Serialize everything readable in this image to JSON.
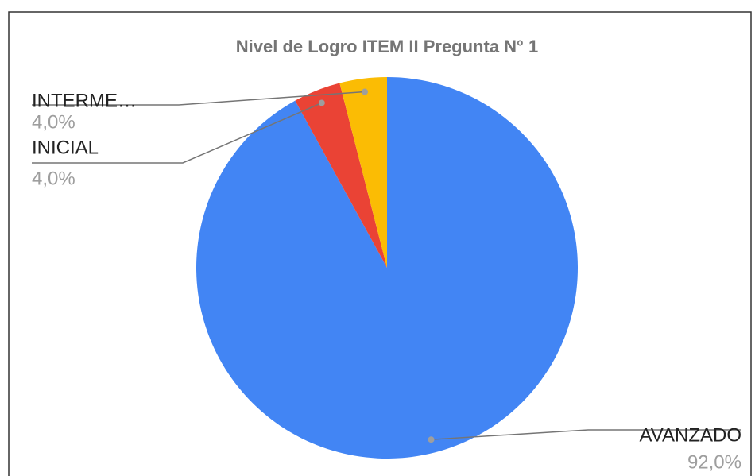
{
  "chart_data": {
    "type": "pie",
    "title": "Nivel de Logro ITEM II Pregunta N° 1",
    "categories": [
      "AVANZADO",
      "INICIAL",
      "INTERME…"
    ],
    "values": [
      92,
      4,
      4
    ],
    "value_labels": [
      "92,0%",
      "4,0%",
      "4,0%"
    ],
    "colors": [
      "#4285f4",
      "#ea4335",
      "#fbbc04"
    ]
  }
}
